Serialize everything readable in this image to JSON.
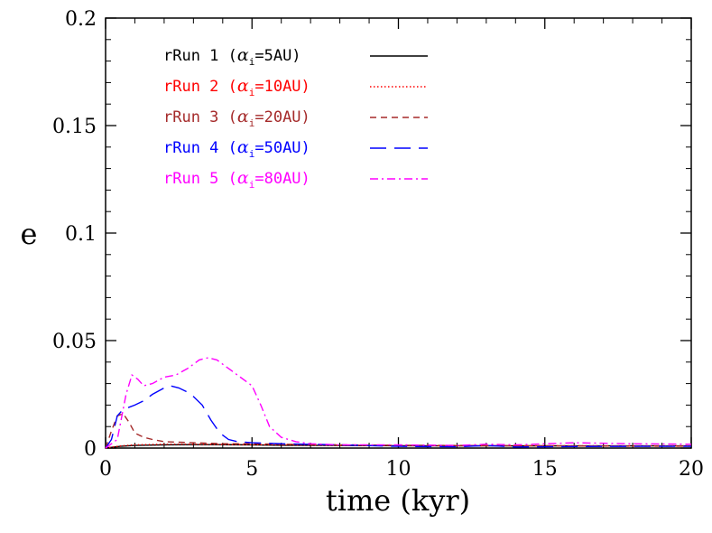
{
  "chart_data": {
    "type": "line",
    "title": "",
    "xlabel": "time (kyr)",
    "ylabel": "e",
    "xlim": [
      0,
      20
    ],
    "ylim": [
      0,
      0.2
    ],
    "xticks": [
      0,
      5,
      10,
      15,
      20
    ],
    "xtick_labels": [
      "0",
      "5",
      "10",
      "15",
      "20"
    ],
    "yticks": [
      0,
      0.05,
      0.1,
      0.15,
      0.2
    ],
    "ytick_labels": [
      "0",
      "0.05",
      "0.1",
      "0.15",
      "0.2"
    ],
    "legend_position": "top-left",
    "series": [
      {
        "name": "rRun 1 (",
        "label_sym": "α",
        "label_sub": "i",
        "label_tail": "=5AU)",
        "color": "#000000",
        "style": "solid",
        "x": [
          0,
          0.5,
          1,
          2,
          3,
          4,
          5,
          6,
          8,
          10,
          12,
          14,
          16,
          18,
          20
        ],
        "y": [
          0,
          0.0008,
          0.0012,
          0.0015,
          0.0016,
          0.0016,
          0.0015,
          0.0013,
          0.0012,
          0.0011,
          0.001,
          0.001,
          0.001,
          0.001,
          0.001
        ]
      },
      {
        "name": "rRun 2 (",
        "label_sym": "α",
        "label_sub": "i",
        "label_tail": "=10AU)",
        "color": "#ff0000",
        "style": "dotted",
        "x": [
          0,
          0.5,
          1,
          2,
          3,
          4,
          5,
          6,
          8,
          10,
          12,
          14,
          16,
          18,
          20
        ],
        "y": [
          0,
          0.001,
          0.0015,
          0.0018,
          0.0018,
          0.0017,
          0.0016,
          0.0015,
          0.0013,
          0.0012,
          0.0011,
          0.0011,
          0.0011,
          0.001,
          0.001
        ]
      },
      {
        "name": "rRun 3 (",
        "label_sym": "α",
        "label_sub": "i",
        "label_tail": "=20AU)",
        "color": "#a52a2a",
        "style": "short-dash",
        "x": [
          0,
          0.2,
          0.4,
          0.6,
          0.8,
          1.0,
          1.3,
          1.6,
          2,
          3,
          4,
          5,
          6,
          8,
          10,
          12,
          14,
          16,
          18,
          20
        ],
        "y": [
          0,
          0.008,
          0.015,
          0.016,
          0.012,
          0.007,
          0.005,
          0.004,
          0.003,
          0.0025,
          0.002,
          0.002,
          0.0018,
          0.0015,
          0.0013,
          0.0012,
          0.0011,
          0.001,
          0.0009,
          0.0009
        ]
      },
      {
        "name": "rRun 4 (",
        "label_sym": "α",
        "label_sub": "i",
        "label_tail": "=50AU)",
        "color": "#0000ff",
        "style": "long-dash",
        "x": [
          0,
          0.2,
          0.4,
          0.6,
          0.8,
          1.0,
          1.3,
          1.6,
          2.0,
          2.2,
          2.5,
          2.8,
          3.0,
          3.3,
          3.6,
          3.9,
          4.2,
          4.5,
          5.0,
          6,
          8,
          10,
          12,
          13,
          14,
          16,
          18,
          20
        ],
        "y": [
          0,
          0.004,
          0.015,
          0.018,
          0.019,
          0.02,
          0.022,
          0.025,
          0.028,
          0.029,
          0.028,
          0.026,
          0.024,
          0.02,
          0.013,
          0.007,
          0.004,
          0.003,
          0.0025,
          0.002,
          0.0015,
          0.0008,
          0.0006,
          0.0012,
          0.0005,
          0.0007,
          0.0008,
          0.0008
        ]
      },
      {
        "name": "rRun 5 (",
        "label_sym": "α",
        "label_sub": "i",
        "label_tail": "=80AU)",
        "color": "#ff00ff",
        "style": "dash-dot",
        "x": [
          0,
          0.4,
          0.7,
          0.9,
          1.1,
          1.3,
          1.6,
          2.0,
          2.4,
          2.8,
          3.2,
          3.5,
          3.8,
          4.2,
          4.6,
          5.0,
          5.3,
          5.6,
          6.0,
          6.5,
          7,
          8,
          10,
          12,
          13,
          14,
          16,
          18,
          20
        ],
        "y": [
          0,
          0.004,
          0.025,
          0.034,
          0.032,
          0.029,
          0.03,
          0.033,
          0.034,
          0.037,
          0.041,
          0.042,
          0.041,
          0.037,
          0.033,
          0.029,
          0.02,
          0.01,
          0.005,
          0.003,
          0.002,
          0.0015,
          0.0015,
          0.0012,
          0.0018,
          0.0015,
          0.0025,
          0.002,
          0.0018
        ]
      }
    ]
  }
}
